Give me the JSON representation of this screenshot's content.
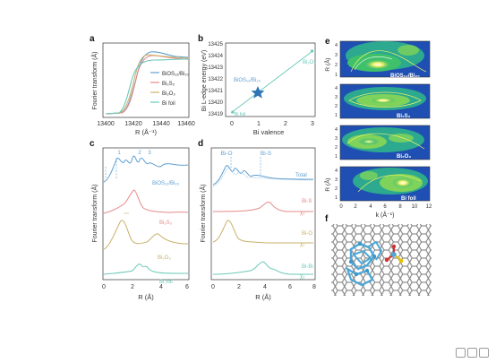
{
  "colors": {
    "bios": "#5f9fd0",
    "bi2s3": "#e58a8a",
    "bi2o3": "#c9b06a",
    "bifoil": "#6cc9b8",
    "axis": "#333333",
    "star": "#2e75b6",
    "graphene": "#6e6e6e",
    "cluster": "#4aa8d8"
  },
  "panels": {
    "a": {
      "letter": "a",
      "xlabel": "R (Å⁻¹)",
      "ylabel": "Fourier transform (Å)",
      "ticks_x": [
        "13400",
        "13420",
        "13440",
        "13460"
      ],
      "legend": [
        "BiOS₁₂/Bi₂₀",
        "Bi₂S₃",
        "Bi₂O₃",
        "Bi foil"
      ]
    },
    "b": {
      "letter": "b",
      "xlabel": "Bi valence",
      "ylabel": "Bi L-edge energy (eV)",
      "ticks_y": [
        "13425",
        "13424",
        "13423",
        "13422",
        "13421",
        "13420",
        "13419"
      ],
      "ticks_x": [
        "0",
        "1",
        "2",
        "3"
      ],
      "labels": {
        "bios": "BiOS₁₂/Bi₂₀",
        "bi2o3": "Bi₂O₃",
        "bifoil": "Bi foil"
      }
    },
    "c": {
      "letter": "c",
      "xlabel": "R (Å)",
      "ylabel": "Fourier transform (Å)",
      "ticks_x": [
        "0",
        "2",
        "4",
        "6"
      ],
      "peak_labels": [
        "1",
        "2",
        "3"
      ],
      "labels": [
        "BiOS₁₂/Bi₂₀",
        "Bi₂S₃",
        "Bi₂O₃",
        "Bi foil"
      ]
    },
    "d": {
      "letter": "d",
      "xlabel": "R (Å)",
      "ylabel": "Fourier transform (Å)",
      "ticks_x": [
        "0",
        "2",
        "4",
        "6",
        "8"
      ],
      "peak_labels": [
        "Bi-O",
        "Bi-S"
      ],
      "labels": [
        "Total",
        "Bi-S",
        "Bi-O",
        "Bi-Bi"
      ],
      "chi": [
        "χ₂",
        "χ₂",
        "χ₂"
      ]
    },
    "e": {
      "letter": "e",
      "xlabel": "k (Å⁻¹)",
      "ylabel": "R (Å)",
      "ticks_x": [
        "0",
        "2",
        "4",
        "6",
        "8",
        "10",
        "12"
      ],
      "ticks_y": [
        "4",
        "3",
        "2",
        "1"
      ],
      "labels": [
        "BiOS₁₂/Bi₂₀",
        "Bi₂S₃",
        "Bi₂O₃",
        "Bi foil"
      ]
    },
    "f": {
      "letter": "f"
    }
  }
}
